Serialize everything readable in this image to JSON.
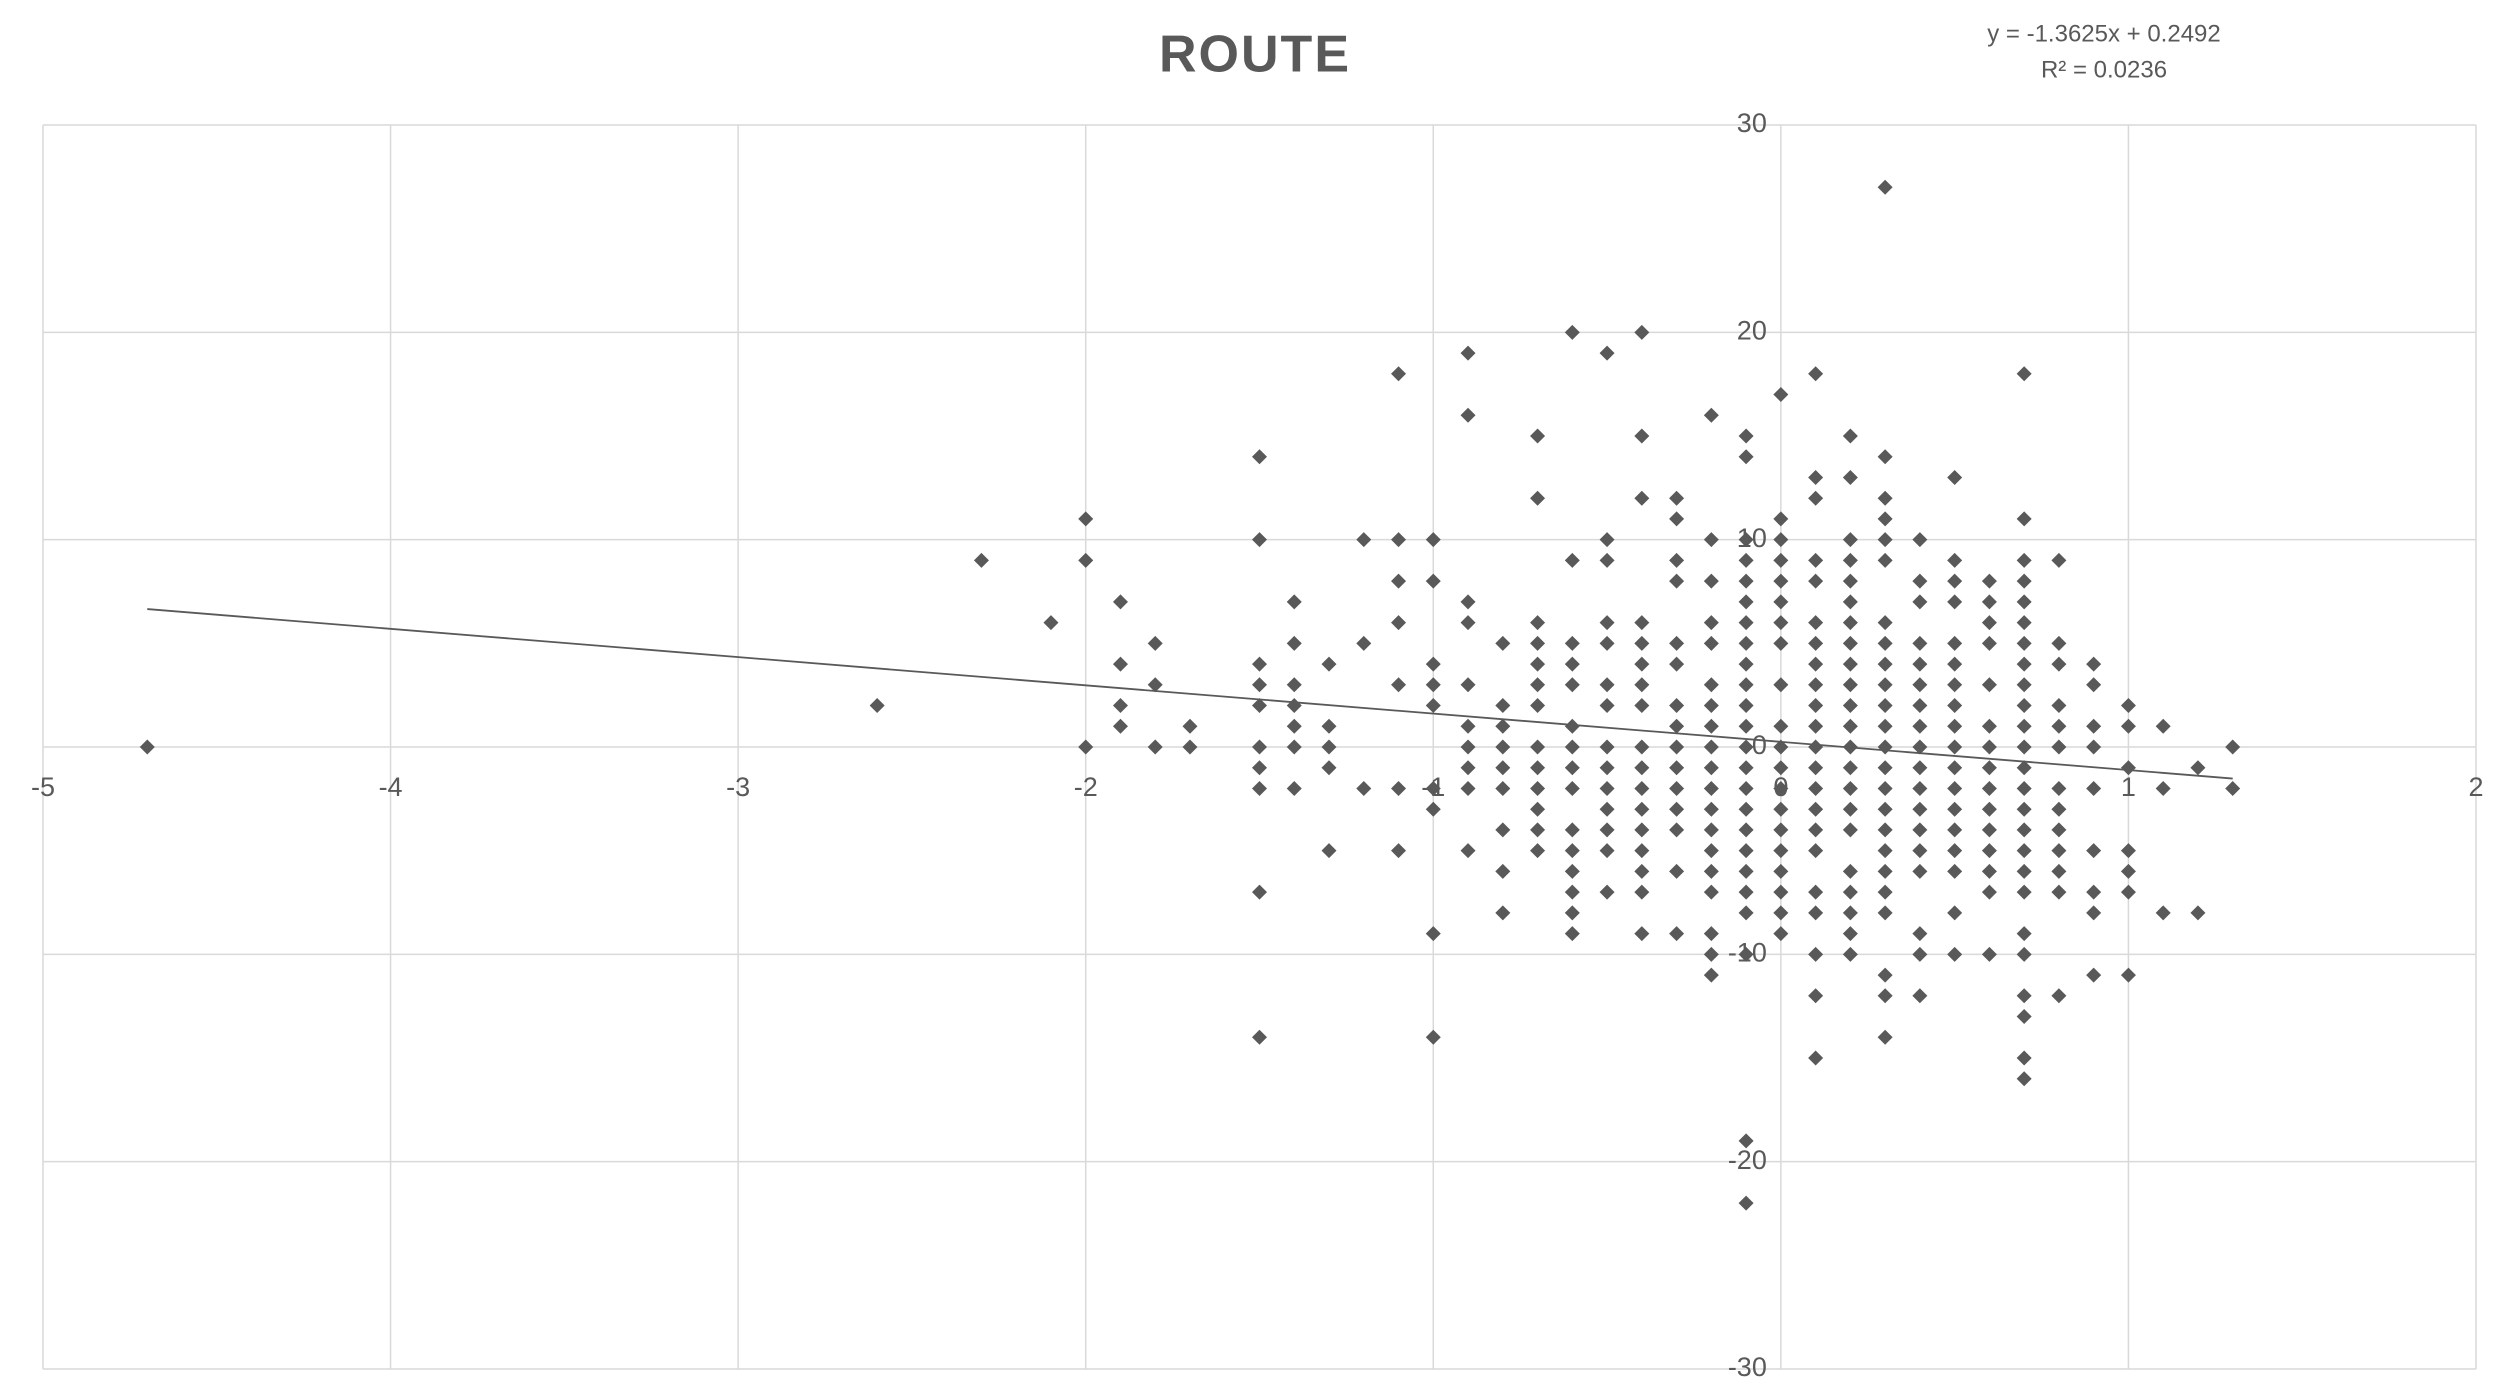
{
  "chart_data": {
    "type": "scatter",
    "title": "ROUTE",
    "trendline": {
      "equation": "y = -1.3625x + 0.2492",
      "r2": "R² = 0.0236",
      "slope": -1.3625,
      "intercept": 0.2492,
      "color": "#595959"
    },
    "color": "#595959",
    "grid": true,
    "xlim": [
      -5,
      2
    ],
    "xticks": [
      -5,
      -4,
      -3,
      -2,
      -1,
      0,
      1,
      2
    ],
    "ylim": [
      -30,
      30
    ],
    "yticks": [
      -30,
      -20,
      -10,
      0,
      10,
      20,
      30
    ],
    "x": [
      -4.7,
      -2.6,
      -2.3,
      -2.1,
      -2,
      -2,
      -2,
      -1.9,
      -1.9,
      -1.9,
      -1.9,
      -1.8,
      -1.8,
      -1.8,
      -1.7,
      -1.7,
      -1.5,
      -1.5,
      -1.5,
      -1.5,
      -1.5,
      -1.5,
      -1.5,
      -1.5,
      -1.5,
      -1.5,
      -1.4,
      -1.4,
      -1.4,
      -1.4,
      -1.4,
      -1.4,
      -1.4,
      -1.3,
      -1.3,
      -1.3,
      -1.3,
      -1.3,
      -1.2,
      -1.2,
      -1.2,
      -1.1,
      -1.1,
      -1.1,
      -1.1,
      -1.1,
      -1.1,
      -1.1,
      -1,
      -1,
      -1,
      -1,
      -1,
      -1,
      -1,
      -1,
      -1,
      -0.9,
      -0.9,
      -0.9,
      -0.9,
      -0.9,
      -0.9,
      -0.9,
      -0.9,
      -0.9,
      -0.9,
      -0.8,
      -0.8,
      -0.8,
      -0.8,
      -0.8,
      -0.8,
      -0.8,
      -0.8,
      -0.8,
      -0.7,
      -0.7,
      -0.7,
      -0.7,
      -0.7,
      -0.7,
      -0.7,
      -0.7,
      -0.7,
      -0.7,
      -0.7,
      -0.7,
      -0.7,
      -0.6,
      -0.6,
      -0.6,
      -0.6,
      -0.6,
      -0.6,
      -0.6,
      -0.6,
      -0.6,
      -0.6,
      -0.6,
      -0.6,
      -0.6,
      -0.6,
      -0.6,
      -0.5,
      -0.5,
      -0.5,
      -0.5,
      -0.5,
      -0.5,
      -0.5,
      -0.5,
      -0.5,
      -0.5,
      -0.5,
      -0.5,
      -0.5,
      -0.5,
      -0.4,
      -0.4,
      -0.4,
      -0.4,
      -0.4,
      -0.4,
      -0.4,
      -0.4,
      -0.4,
      -0.4,
      -0.4,
      -0.4,
      -0.4,
      -0.4,
      -0.4,
      -0.4,
      -0.4,
      -0.3,
      -0.3,
      -0.3,
      -0.3,
      -0.3,
      -0.3,
      -0.3,
      -0.3,
      -0.3,
      -0.3,
      -0.3,
      -0.3,
      -0.3,
      -0.3,
      -0.3,
      -0.2,
      -0.2,
      -0.2,
      -0.2,
      -0.2,
      -0.2,
      -0.2,
      -0.2,
      -0.2,
      -0.2,
      -0.2,
      -0.2,
      -0.2,
      -0.2,
      -0.2,
      -0.2,
      -0.2,
      -0.2,
      -0.2,
      -0.1,
      -0.1,
      -0.1,
      -0.1,
      -0.1,
      -0.1,
      -0.1,
      -0.1,
      -0.1,
      -0.1,
      -0.1,
      -0.1,
      -0.1,
      -0.1,
      -0.1,
      -0.1,
      -0.1,
      -0.1,
      -0.1,
      -0.1,
      -0.1,
      -0.1,
      -0.1,
      -0.1,
      0,
      0,
      0,
      0,
      0,
      0,
      0,
      0,
      0,
      0,
      0,
      0,
      0,
      0,
      0,
      0,
      0,
      0,
      0,
      0,
      0.1,
      0.1,
      0.1,
      0.1,
      0.1,
      0.1,
      0.1,
      0.1,
      0.1,
      0.1,
      0.1,
      0.1,
      0.1,
      0.1,
      0.1,
      0.1,
      0.1,
      0.1,
      0.1,
      0.1,
      0.1,
      0.1,
      0.2,
      0.2,
      0.2,
      0.2,
      0.2,
      0.2,
      0.2,
      0.2,
      0.2,
      0.2,
      0.2,
      0.2,
      0.2,
      0.2,
      0.2,
      0.2,
      0.2,
      0.2,
      0.2,
      0.2,
      0.2,
      0.2,
      0.3,
      0.3,
      0.3,
      0.3,
      0.3,
      0.3,
      0.3,
      0.3,
      0.3,
      0.3,
      0.3,
      0.3,
      0.3,
      0.3,
      0.3,
      0.3,
      0.3,
      0.3,
      0.3,
      0.3,
      0.3,
      0.3,
      0.3,
      0.3,
      0.4,
      0.4,
      0.4,
      0.4,
      0.4,
      0.4,
      0.4,
      0.4,
      0.4,
      0.4,
      0.4,
      0.4,
      0.4,
      0.4,
      0.4,
      0.4,
      0.4,
      0.4,
      0.5,
      0.5,
      0.5,
      0.5,
      0.5,
      0.5,
      0.5,
      0.5,
      0.5,
      0.5,
      0.5,
      0.5,
      0.5,
      0.5,
      0.5,
      0.5,
      0.5,
      0.5,
      0.6,
      0.6,
      0.6,
      0.6,
      0.6,
      0.6,
      0.6,
      0.6,
      0.6,
      0.6,
      0.6,
      0.6,
      0.6,
      0.6,
      0.6,
      0.7,
      0.7,
      0.7,
      0.7,
      0.7,
      0.7,
      0.7,
      0.7,
      0.7,
      0.7,
      0.7,
      0.7,
      0.7,
      0.7,
      0.7,
      0.7,
      0.7,
      0.7,
      0.7,
      0.7,
      0.7,
      0.7,
      0.7,
      0.7,
      0.7,
      0.8,
      0.8,
      0.8,
      0.8,
      0.8,
      0.8,
      0.8,
      0.8,
      0.8,
      0.8,
      0.8,
      0.8,
      0.8,
      0.9,
      0.9,
      0.9,
      0.9,
      0.9,
      0.9,
      0.9,
      0.9,
      0.9,
      1,
      1,
      1,
      1,
      1,
      1,
      1,
      1.1,
      1.1,
      1.1,
      1.2,
      1.2,
      1.3,
      1.3
    ],
    "values": [
      0,
      2,
      9,
      6,
      11,
      9,
      0,
      7,
      4,
      2,
      1,
      5,
      3,
      0,
      1,
      0,
      14,
      10,
      4,
      3,
      2,
      0,
      -1,
      -2,
      -7,
      -14,
      7,
      5,
      3,
      2,
      1,
      0,
      -2,
      4,
      1,
      0,
      -1,
      -5,
      10,
      5,
      -2,
      18,
      10,
      8,
      6,
      3,
      -2,
      -5,
      10,
      8,
      4,
      3,
      2,
      -2,
      -3,
      -9,
      -14,
      19,
      16,
      7,
      6,
      3,
      1,
      0,
      -1,
      -2,
      -5,
      5,
      2,
      1,
      0,
      -1,
      -2,
      -4,
      -6,
      -8,
      15,
      12,
      6,
      5,
      4,
      3,
      2,
      0,
      -1,
      -2,
      -3,
      -4,
      -5,
      20,
      9,
      5,
      4,
      3,
      1,
      0,
      -1,
      -2,
      -4,
      -5,
      -6,
      -7,
      -8,
      -9,
      19,
      10,
      9,
      6,
      5,
      3,
      2,
      0,
      -1,
      -2,
      -3,
      -4,
      -5,
      -7,
      20,
      15,
      12,
      6,
      5,
      4,
      3,
      2,
      0,
      -1,
      -2,
      -3,
      -4,
      -5,
      -6,
      -7,
      -9,
      12,
      11,
      9,
      8,
      5,
      4,
      2,
      1,
      0,
      -1,
      -2,
      -3,
      -4,
      -6,
      -9,
      16,
      10,
      8,
      6,
      5,
      3,
      2,
      1,
      0,
      -1,
      -2,
      -3,
      -4,
      -5,
      -6,
      -7,
      -9,
      -10,
      -11,
      15,
      14,
      10,
      9,
      8,
      7,
      6,
      5,
      4,
      3,
      2,
      1,
      0,
      -1,
      -2,
      -3,
      -4,
      -5,
      -6,
      -7,
      -8,
      -10,
      -19,
      -22,
      17,
      11,
      10,
      9,
      8,
      7,
      6,
      5,
      3,
      1,
      0,
      -1,
      -2,
      -3,
      -4,
      -5,
      -6,
      -7,
      -8,
      -9,
      18,
      13,
      12,
      9,
      8,
      6,
      5,
      4,
      3,
      2,
      1,
      0,
      -1,
      -2,
      -3,
      -4,
      -5,
      -7,
      -8,
      -10,
      -12,
      -15,
      15,
      13,
      10,
      9,
      8,
      7,
      6,
      5,
      4,
      3,
      2,
      1,
      0,
      -1,
      -2,
      -3,
      -4,
      -6,
      -7,
      -8,
      -9,
      -10,
      27,
      14,
      12,
      11,
      10,
      9,
      6,
      5,
      4,
      3,
      2,
      1,
      0,
      -1,
      -2,
      -3,
      -4,
      -5,
      -6,
      -7,
      -8,
      -11,
      -12,
      -14,
      10,
      8,
      7,
      5,
      4,
      3,
      2,
      1,
      0,
      -1,
      -2,
      -3,
      -4,
      -5,
      -6,
      -9,
      -10,
      -12,
      13,
      9,
      8,
      7,
      5,
      4,
      3,
      2,
      1,
      0,
      -1,
      -2,
      -3,
      -4,
      -5,
      -6,
      -8,
      -10,
      8,
      7,
      6,
      5,
      3,
      1,
      0,
      -1,
      -2,
      -3,
      -4,
      -5,
      -6,
      -7,
      -10,
      18,
      11,
      9,
      8,
      7,
      6,
      5,
      4,
      3,
      2,
      1,
      0,
      -1,
      -2,
      -3,
      -4,
      -5,
      -6,
      -7,
      -9,
      -10,
      -12,
      -13,
      -15,
      -16,
      9,
      5,
      4,
      2,
      1,
      0,
      -2,
      -3,
      -4,
      -5,
      -6,
      -7,
      -12,
      4,
      3,
      1,
      0,
      -2,
      -5,
      -7,
      -8,
      -11,
      2,
      1,
      -1,
      -5,
      -6,
      -7,
      -11,
      1,
      -2,
      -8,
      -1,
      -8,
      0,
      -2
    ]
  }
}
